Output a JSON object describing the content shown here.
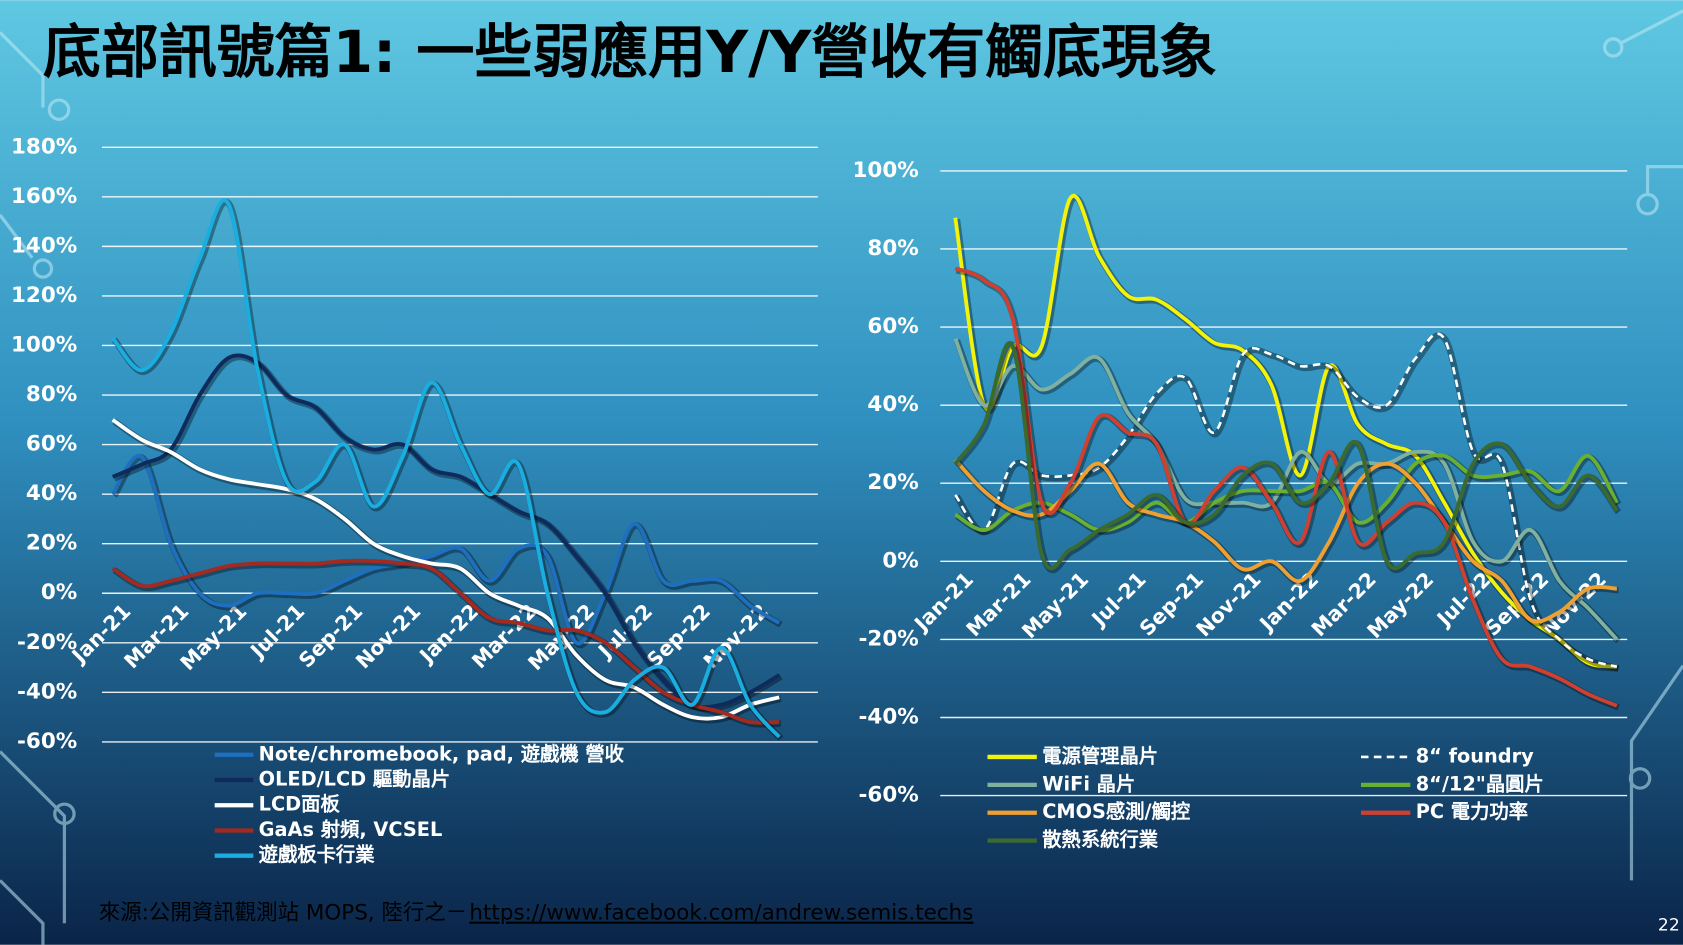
{
  "slide": {
    "title": "底部訊號篇1: 一些弱應用Y/Y營收有觸底現象",
    "source": "來源:公開資訊觀測站 MOPS, 陸行之－",
    "url": "https://www.facebook.com/andrew.semis.techs",
    "page_number": "22"
  },
  "chart_data": [
    {
      "type": "line",
      "categories": [
        "Jan-21",
        null,
        "Mar-21",
        null,
        "May-21",
        null,
        "Jul-21",
        null,
        "Sep-21",
        null,
        "Nov-21",
        null,
        "Jan-22",
        null,
        "Mar-22",
        null,
        "May-22",
        null,
        "Jul-22",
        null,
        "Sep-22",
        null,
        "Nov-22",
        null
      ],
      "ylim": [
        -60,
        180
      ],
      "yticks": [
        {
          "value": -60,
          "label": "-60%"
        },
        {
          "value": -40,
          "label": "-40%"
        },
        {
          "value": -20,
          "label": "-20%"
        },
        {
          "value": 0,
          "label": "0%"
        },
        {
          "value": 20,
          "label": "20%"
        },
        {
          "value": 40,
          "label": "40%"
        },
        {
          "value": 60,
          "label": "60%"
        },
        {
          "value": 80,
          "label": "80%"
        },
        {
          "value": 100,
          "label": "100%"
        },
        {
          "value": 120,
          "label": "120%"
        },
        {
          "value": 140,
          "label": "140%"
        },
        {
          "value": 160,
          "label": "160%"
        },
        {
          "value": 180,
          "label": "180%"
        }
      ],
      "grid": true,
      "legend": "bottom",
      "series": [
        {
          "name": "Note/chromebook, pad, 遊戲機 營收",
          "color": "#1f6fbf",
          "values": [
            40,
            55,
            20,
            0,
            -5,
            0,
            0,
            0,
            5,
            10,
            12,
            15,
            18,
            5,
            18,
            15,
            -20,
            0,
            28,
            5,
            5,
            5,
            -5,
            -12
          ]
        },
        {
          "name": "OLED/LCD 驅動晶片",
          "color": "#0f2a5c",
          "values": [
            47,
            52,
            58,
            80,
            95,
            93,
            80,
            75,
            63,
            58,
            60,
            50,
            47,
            40,
            33,
            28,
            15,
            0,
            -20,
            -35,
            -45,
            -45,
            -40,
            -33
          ]
        },
        {
          "name": "LCD面板",
          "color": "#ffffff",
          "values": [
            70,
            62,
            57,
            50,
            46,
            44,
            42,
            38,
            30,
            20,
            15,
            12,
            10,
            0,
            -5,
            -10,
            -25,
            -35,
            -38,
            -45,
            -50,
            -50,
            -45,
            -42
          ]
        },
        {
          "name": "GaAs 射頻, VCSEL",
          "color": "#a32a20",
          "values": [
            10,
            3,
            5,
            8,
            11,
            12,
            12,
            12,
            13,
            13,
            12,
            10,
            0,
            -10,
            -12,
            -15,
            -15,
            -20,
            -30,
            -40,
            -45,
            -48,
            -52,
            -52
          ]
        },
        {
          "name": "遊戲板卡行業",
          "color": "#1aaee0",
          "values": [
            103,
            90,
            105,
            135,
            157,
            90,
            45,
            45,
            60,
            35,
            55,
            85,
            60,
            40,
            52,
            0,
            -40,
            -48,
            -35,
            -30,
            -45,
            -22,
            -45,
            -58
          ]
        }
      ]
    },
    {
      "type": "line",
      "categories": [
        "Jan-21",
        null,
        "Mar-21",
        null,
        "May-21",
        null,
        "Jul-21",
        null,
        "Sep-21",
        null,
        "Nov-21",
        null,
        "Jan-22",
        null,
        "Mar-22",
        null,
        "May-22",
        null,
        "Jul-22",
        null,
        "Sep-22",
        null,
        "Nov-22",
        null
      ],
      "ylim": [
        -60,
        100
      ],
      "yticks": [
        {
          "value": -60,
          "label": "-60%"
        },
        {
          "value": -40,
          "label": "-40%"
        },
        {
          "value": -20,
          "label": "-20%"
        },
        {
          "value": 0,
          "label": "0%"
        },
        {
          "value": 20,
          "label": "20%"
        },
        {
          "value": 40,
          "label": "40%"
        },
        {
          "value": 60,
          "label": "60%"
        },
        {
          "value": 80,
          "label": "80%"
        },
        {
          "value": 100,
          "label": "100%"
        }
      ],
      "grid": true,
      "legend": "bottom",
      "series": [
        {
          "name": "電源管理晶片",
          "color": "#f2f20a",
          "values": [
            88,
            40,
            55,
            55,
            93,
            78,
            68,
            67,
            62,
            56,
            54,
            45,
            22,
            50,
            35,
            30,
            27,
            15,
            2,
            -8,
            -15,
            -20,
            -26,
            -27
          ]
        },
        {
          "name": "8“ foundry",
          "color": "#ffffff",
          "style": "dashed",
          "values": [
            17,
            8,
            25,
            22,
            22,
            24,
            32,
            43,
            47,
            33,
            53,
            53,
            50,
            50,
            42,
            40,
            52,
            57,
            28,
            25,
            -10,
            -20,
            -25,
            -27
          ]
        },
        {
          "name": "WiFi 晶片",
          "color": "#7fb0a0",
          "values": [
            57,
            40,
            50,
            44,
            48,
            52,
            38,
            30,
            16,
            15,
            15,
            15,
            28,
            20,
            25,
            25,
            28,
            25,
            5,
            0,
            8,
            -5,
            -12,
            -20
          ]
        },
        {
          "name": "8“/12\"晶圓片",
          "color": "#6ab030",
          "values": [
            12,
            8,
            13,
            15,
            12,
            8,
            10,
            15,
            10,
            15,
            18,
            18,
            18,
            20,
            10,
            15,
            25,
            27,
            22,
            22,
            23,
            18,
            27,
            15
          ]
        },
        {
          "name": "CMOS感測/觸控",
          "color": "#f0a030",
          "values": [
            26,
            18,
            13,
            12,
            18,
            25,
            15,
            12,
            10,
            5,
            -2,
            0,
            -5,
            5,
            20,
            25,
            20,
            10,
            0,
            -5,
            -15,
            -13,
            -7,
            -7
          ]
        },
        {
          "name": "PC 電力功率",
          "color": "#d04030",
          "values": [
            75,
            72,
            62,
            15,
            20,
            37,
            33,
            30,
            10,
            18,
            24,
            15,
            5,
            28,
            5,
            10,
            15,
            10,
            -10,
            -25,
            -27,
            -30,
            -34,
            -37
          ]
        },
        {
          "name": "散熱系統行業",
          "color": "#3a6a30",
          "values": [
            25,
            35,
            55,
            2,
            3,
            8,
            12,
            17,
            10,
            12,
            22,
            25,
            15,
            20,
            30,
            0,
            2,
            5,
            25,
            30,
            20,
            14,
            22,
            13
          ]
        }
      ]
    }
  ]
}
